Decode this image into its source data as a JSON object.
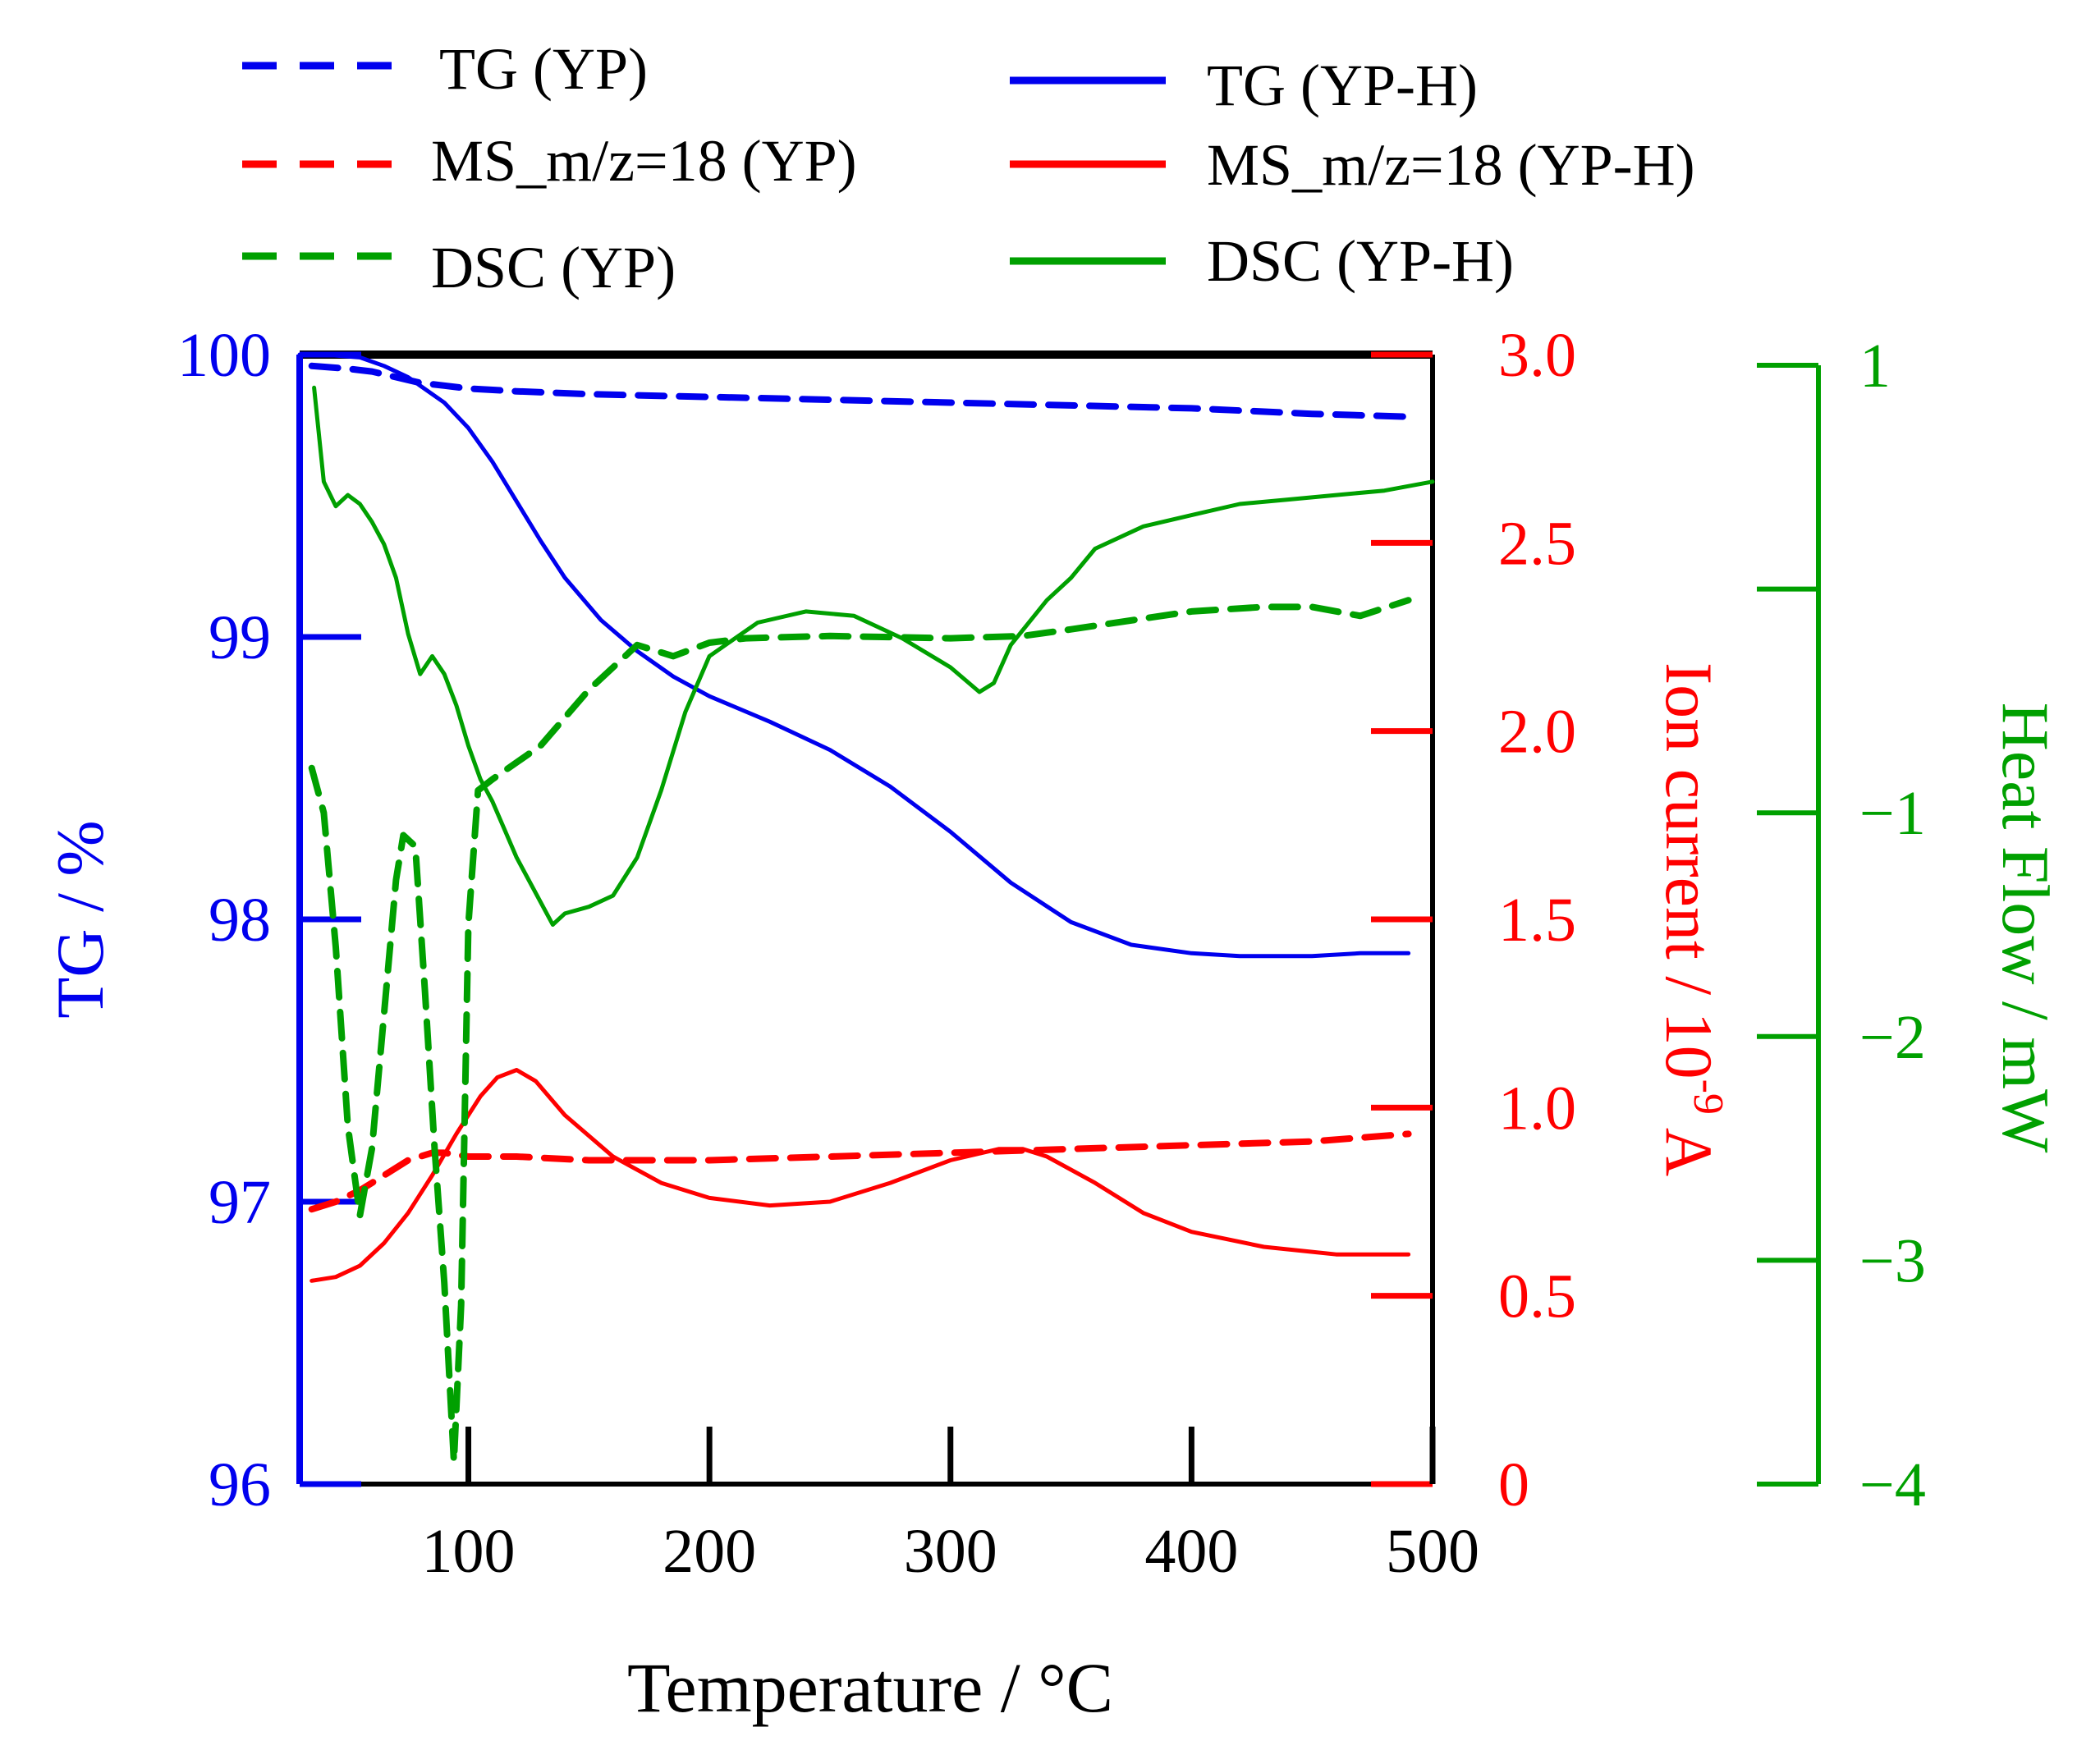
{
  "chart_data": {
    "type": "line",
    "title": "",
    "xlabel": "Temperature / °C",
    "xlim": [
      30,
      500
    ],
    "xticks": [
      100,
      200,
      300,
      400,
      500
    ],
    "colors": {
      "tg": "#0000ee",
      "ms": "#ff0000",
      "dsc": "#00a000",
      "axis": "#000000"
    },
    "axes": {
      "left": {
        "label": "TG / %",
        "ylim": [
          96,
          100
        ],
        "ticks": [
          96,
          97,
          98,
          99,
          100
        ],
        "tick_labels": [
          "96",
          "97",
          "98",
          "99",
          "100"
        ],
        "color": "#0000ee"
      },
      "right": {
        "label_main": "Ion current / 10",
        "label_exp": "-9",
        "label_unit": " A",
        "ylim": [
          0,
          3.0
        ],
        "ticks": [
          0,
          0.5,
          1.0,
          1.5,
          2.0,
          2.5,
          3.0
        ],
        "tick_labels": [
          "0",
          "0.5",
          "1.0",
          "1.5",
          "2.0",
          "2.5",
          "3.0"
        ],
        "color": "#ff0000"
      },
      "right2": {
        "label": "Heat Flow / mW",
        "ylim": [
          -4,
          1
        ],
        "ticks": [
          -4,
          -3,
          -2,
          -1,
          0,
          1
        ],
        "tick_labels": [
          "−4",
          "−3",
          "−2",
          "−1",
          "",
          "1"
        ],
        "color": "#00a000"
      }
    },
    "legend": {
      "placement": "top",
      "entries": [
        {
          "label": "TG (YP)",
          "color": "#0000ee",
          "dashed": true
        },
        {
          "label": "TG (YP-H)",
          "color": "#0000ee",
          "dashed": false
        },
        {
          "label": "MS_m/z=18 (YP)",
          "color": "#ff0000",
          "dashed": true
        },
        {
          "label": "MS_m/z=18 (YP-H)",
          "color": "#ff0000",
          "dashed": false
        },
        {
          "label": "DSC (YP)",
          "color": "#00a000",
          "dashed": true
        },
        {
          "label": "DSC (YP-H)",
          "color": "#00a000",
          "dashed": false
        }
      ]
    },
    "series": [
      {
        "name": "TG (YP)",
        "axis": "left",
        "color": "#0000ee",
        "dashed": true,
        "x": [
          35,
          50,
          60,
          70,
          80,
          90,
          100,
          120,
          150,
          200,
          250,
          300,
          350,
          400,
          450,
          490
        ],
        "y": [
          99.96,
          99.95,
          99.94,
          99.92,
          99.9,
          99.89,
          99.88,
          99.87,
          99.86,
          99.85,
          99.84,
          99.83,
          99.82,
          99.81,
          99.79,
          99.78
        ]
      },
      {
        "name": "TG (YP-H)",
        "axis": "left",
        "color": "#0000ee",
        "dashed": false,
        "x": [
          30,
          40,
          55,
          65,
          75,
          90,
          100,
          110,
          120,
          130,
          140,
          155,
          170,
          185,
          200,
          225,
          250,
          275,
          300,
          325,
          350,
          375,
          400,
          420,
          450,
          470,
          490
        ],
        "y": [
          100.0,
          100.0,
          99.99,
          99.96,
          99.92,
          99.83,
          99.74,
          99.62,
          99.48,
          99.34,
          99.21,
          99.06,
          98.95,
          98.86,
          98.79,
          98.7,
          98.6,
          98.47,
          98.31,
          98.13,
          97.99,
          97.91,
          97.88,
          97.87,
          97.87,
          97.88,
          97.88
        ]
      },
      {
        "name": "MS_m/z=18 (YP)",
        "axis": "right",
        "color": "#ff0000",
        "dashed": true,
        "x": [
          35,
          45,
          55,
          65,
          75,
          85,
          90,
          100,
          120,
          150,
          200,
          250,
          300,
          350,
          400,
          450,
          490
        ],
        "y": [
          0.73,
          0.75,
          0.78,
          0.82,
          0.86,
          0.88,
          0.88,
          0.87,
          0.87,
          0.86,
          0.86,
          0.87,
          0.88,
          0.89,
          0.9,
          0.91,
          0.93
        ]
      },
      {
        "name": "MS_m/z=18 (YP-H)",
        "axis": "right",
        "color": "#ff0000",
        "dashed": false,
        "x": [
          35,
          45,
          55,
          65,
          75,
          85,
          95,
          105,
          112,
          120,
          128,
          140,
          160,
          180,
          200,
          225,
          250,
          275,
          300,
          320,
          330,
          340,
          360,
          380,
          400,
          430,
          460,
          490
        ],
        "y": [
          0.54,
          0.55,
          0.58,
          0.64,
          0.72,
          0.82,
          0.93,
          1.03,
          1.08,
          1.1,
          1.07,
          0.98,
          0.87,
          0.8,
          0.76,
          0.74,
          0.75,
          0.8,
          0.86,
          0.89,
          0.89,
          0.87,
          0.8,
          0.72,
          0.67,
          0.63,
          0.61,
          0.61
        ]
      },
      {
        "name": "DSC (YP)",
        "axis": "right2",
        "color": "#00a000",
        "dashed": true,
        "x": [
          35,
          40,
          45,
          50,
          55,
          60,
          65,
          70,
          73,
          78,
          82,
          86,
          90,
          94,
          97,
          100,
          104,
          110,
          130,
          150,
          170,
          185,
          200,
          215,
          250,
          300,
          330,
          350,
          400,
          430,
          450,
          470,
          490
        ],
        "y": [
          -0.8,
          -1.0,
          -1.6,
          -2.4,
          -2.8,
          -2.5,
          -1.9,
          -1.3,
          -1.1,
          -1.15,
          -1.8,
          -2.5,
          -3.1,
          -3.9,
          -3.2,
          -1.5,
          -0.9,
          -0.85,
          -0.7,
          -0.45,
          -0.25,
          -0.3,
          -0.24,
          -0.22,
          -0.21,
          -0.22,
          -0.21,
          -0.18,
          -0.1,
          -0.08,
          -0.08,
          -0.12,
          -0.05
        ]
      },
      {
        "name": "DSC (YP-H)",
        "axis": "right2",
        "color": "#00a000",
        "dashed": false,
        "x": [
          36,
          40,
          45,
          50,
          55,
          60,
          65,
          70,
          75,
          80,
          85,
          90,
          95,
          100,
          105,
          110,
          120,
          130,
          135,
          140,
          150,
          160,
          170,
          180,
          190,
          200,
          220,
          240,
          260,
          280,
          300,
          312,
          318,
          325,
          340,
          350,
          360,
          380,
          400,
          420,
          440,
          460,
          480,
          500
        ],
        "y": [
          0.9,
          0.48,
          0.37,
          0.42,
          0.38,
          0.3,
          0.2,
          0.05,
          -0.2,
          -0.38,
          -0.3,
          -0.38,
          -0.52,
          -0.7,
          -0.85,
          -0.95,
          -1.2,
          -1.4,
          -1.5,
          -1.45,
          -1.42,
          -1.37,
          -1.2,
          -0.9,
          -0.55,
          -0.3,
          -0.15,
          -0.1,
          -0.12,
          -0.22,
          -0.35,
          -0.46,
          -0.42,
          -0.25,
          -0.05,
          0.05,
          0.18,
          0.28,
          0.33,
          0.38,
          0.4,
          0.42,
          0.44,
          0.48
        ]
      }
    ]
  }
}
